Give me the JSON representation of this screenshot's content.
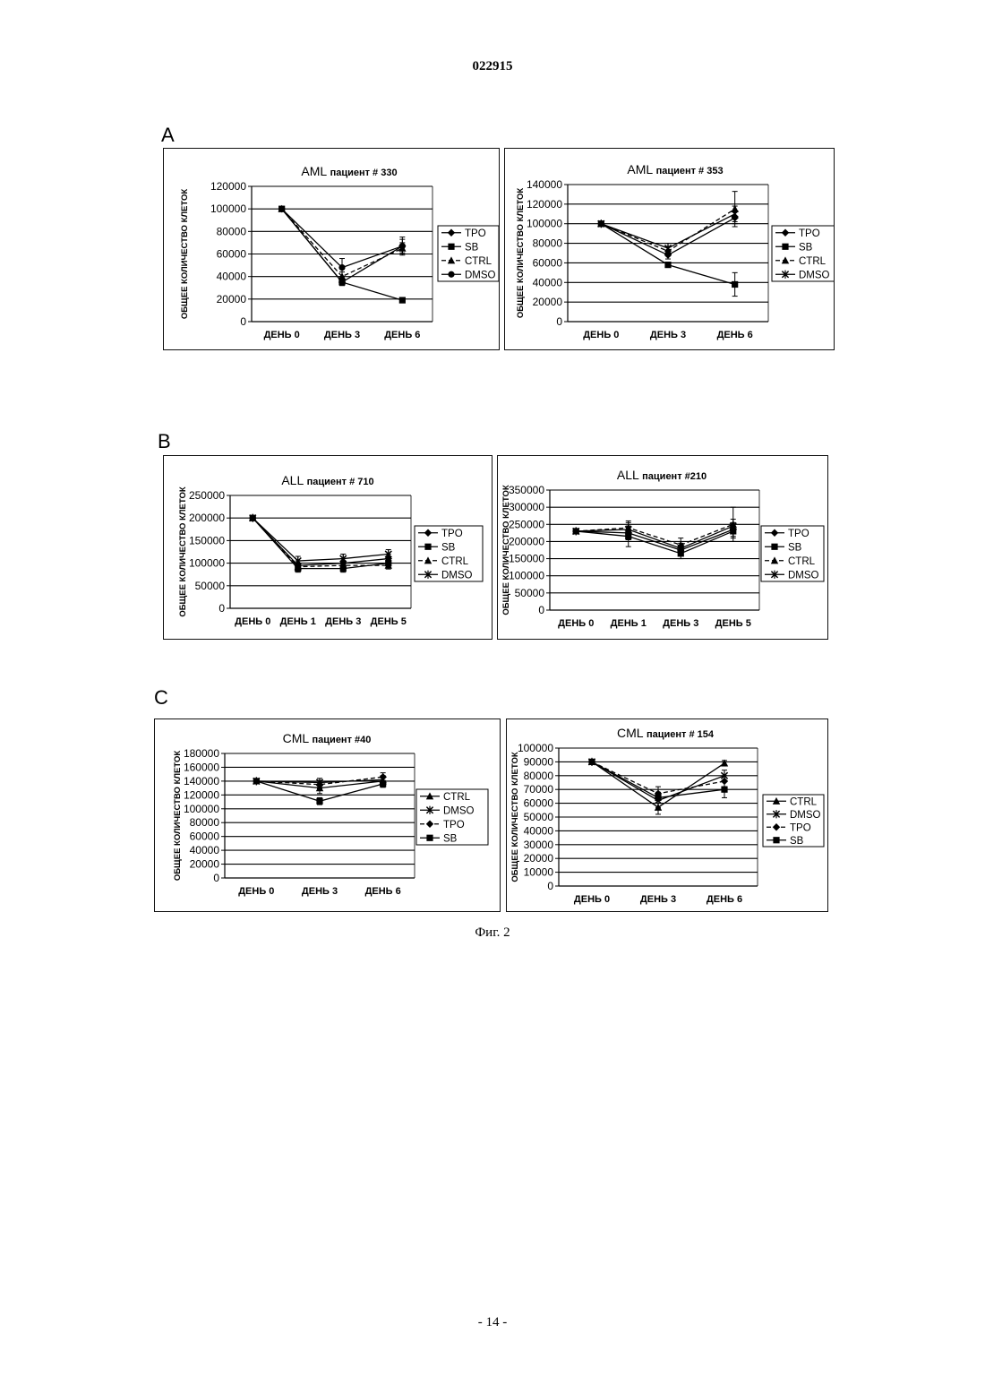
{
  "header": {
    "doc_number": "022915"
  },
  "sections": {
    "a": "A",
    "b": "B",
    "c": "C"
  },
  "caption": "Фиг. 2",
  "footer": {
    "page": "- 14 -"
  },
  "chart_data": [
    {
      "id": "aml330",
      "type": "line",
      "title": "AML пациент # 330",
      "title_main": "AML",
      "title_sub": "пациент # 330",
      "ylabel": "ОБЩЕЕ КОЛИЧЕСТВО КЛЕТОК",
      "categories": [
        "ДЕНЬ 0",
        "ДЕНЬ 3",
        "ДЕНЬ 6"
      ],
      "ylim": [
        0,
        120000
      ],
      "yticks": [
        0,
        20000,
        40000,
        60000,
        80000,
        100000,
        120000
      ],
      "ytick_labels": [
        "0",
        "20000",
        "40000",
        "60000",
        "80000",
        "100000",
        "120000"
      ],
      "grid": true,
      "legend_position": "right",
      "series": [
        {
          "name": "TPO",
          "marker": "diamond",
          "values": [
            100000,
            35000,
            67000
          ],
          "errors": [
            0,
            3000,
            6000
          ]
        },
        {
          "name": "SB",
          "marker": "square",
          "values": [
            100000,
            35000,
            19000
          ],
          "errors": [
            0,
            2000,
            1000
          ]
        },
        {
          "name": "CTRL",
          "marker": "triangle",
          "values": [
            100000,
            40000,
            65000
          ],
          "errors": [
            0,
            4000,
            5000
          ]
        },
        {
          "name": "DMSO",
          "marker": "circle",
          "values": [
            100000,
            48000,
            67000
          ],
          "errors": [
            0,
            8000,
            8000
          ]
        }
      ]
    },
    {
      "id": "aml353",
      "type": "line",
      "title": "AML пациент # 353",
      "title_main": "AML",
      "title_sub": "пациент # 353",
      "ylabel": "ОБЩЕЕ КОЛИЧЕСТВО КЛЕТОК",
      "categories": [
        "ДЕНЬ 0",
        "ДЕНЬ 3",
        "ДЕНЬ 6"
      ],
      "ylim": [
        0,
        140000
      ],
      "yticks": [
        0,
        20000,
        40000,
        60000,
        80000,
        100000,
        120000,
        140000
      ],
      "ytick_labels": [
        "0",
        "20000",
        "40000",
        "60000",
        "80000",
        "100000",
        "120000",
        "140000"
      ],
      "grid": true,
      "legend_position": "right",
      "series": [
        {
          "name": "TPO",
          "marker": "diamond",
          "values": [
            100000,
            68000,
            106000
          ],
          "errors": [
            0,
            4000,
            6000
          ]
        },
        {
          "name": "SB",
          "marker": "square",
          "values": [
            100000,
            58000,
            38000
          ],
          "errors": [
            0,
            2000,
            12000
          ]
        },
        {
          "name": "CTRL",
          "marker": "triangle",
          "values": [
            100000,
            72000,
            115000
          ],
          "errors": [
            0,
            5000,
            18000
          ]
        },
        {
          "name": "DMSO",
          "marker": "x",
          "values": [
            100000,
            75000,
            110000
          ],
          "errors": [
            0,
            5000,
            8000
          ]
        }
      ]
    },
    {
      "id": "all710",
      "type": "line",
      "title": "ALL пациент # 710",
      "title_main": "ALL",
      "title_sub": "пациент # 710",
      "ylabel": "ОБЩЕЕ КОЛИЧЕСТВО КЛЕТОК",
      "categories": [
        "ДЕНЬ 0",
        "ДЕНЬ 1",
        "ДЕНЬ 3",
        "ДЕНЬ 5"
      ],
      "ylim": [
        0,
        250000
      ],
      "yticks": [
        0,
        50000,
        100000,
        150000,
        200000,
        250000
      ],
      "ytick_labels": [
        "0",
        "50000",
        "100000",
        "150000",
        "200000",
        "250000"
      ],
      "grid": true,
      "legend_position": "right",
      "series": [
        {
          "name": "TPO",
          "marker": "diamond",
          "values": [
            200000,
            95000,
            100000,
            110000
          ],
          "errors": [
            0,
            10000,
            10000,
            10000
          ]
        },
        {
          "name": "SB",
          "marker": "square",
          "values": [
            200000,
            88000,
            88000,
            100000
          ],
          "errors": [
            0,
            8000,
            8000,
            10000
          ]
        },
        {
          "name": "CTRL",
          "marker": "triangle",
          "values": [
            200000,
            92000,
            95000,
            95000
          ],
          "errors": [
            0,
            8000,
            8000,
            8000
          ]
        },
        {
          "name": "DMSO",
          "marker": "x",
          "values": [
            200000,
            105000,
            110000,
            120000
          ],
          "errors": [
            0,
            10000,
            10000,
            10000
          ]
        }
      ]
    },
    {
      "id": "all210",
      "type": "line",
      "title": "ALL пациент #210",
      "title_main": "ALL",
      "title_sub": "пациент #210",
      "ylabel": "ОБЩЕЕ КОЛИЧЕСТВО КЛЕТОК",
      "categories": [
        "ДЕНЬ 0",
        "ДЕНЬ 1",
        "ДЕНЬ 3",
        "ДЕНЬ 5"
      ],
      "ylim": [
        0,
        350000
      ],
      "yticks": [
        0,
        50000,
        100000,
        150000,
        200000,
        250000,
        300000,
        350000
      ],
      "ytick_labels": [
        "0",
        "50000",
        "100000",
        "150000",
        "200000",
        "250000",
        "300000",
        "350000"
      ],
      "grid": true,
      "legend_position": "right",
      "series": [
        {
          "name": "TPO",
          "marker": "diamond",
          "values": [
            230000,
            225000,
            175000,
            235000
          ],
          "errors": [
            0,
            20000,
            15000,
            20000
          ]
        },
        {
          "name": "SB",
          "marker": "square",
          "values": [
            230000,
            215000,
            165000,
            230000
          ],
          "errors": [
            0,
            30000,
            15000,
            20000
          ]
        },
        {
          "name": "CTRL",
          "marker": "triangle",
          "values": [
            230000,
            240000,
            190000,
            250000
          ],
          "errors": [
            0,
            20000,
            20000,
            50000
          ]
        },
        {
          "name": "DMSO",
          "marker": "x",
          "values": [
            230000,
            235000,
            180000,
            245000
          ],
          "errors": [
            0,
            20000,
            15000,
            20000
          ]
        }
      ]
    },
    {
      "id": "cml40",
      "type": "line",
      "title": "CML пациент #40",
      "title_main": "CML",
      "title_sub": "пациент #40",
      "ylabel": "ОБЩЕЕ КОЛИЧЕСТВО КЛЕТОК",
      "categories": [
        "ДЕНЬ 0",
        "ДЕНЬ 3",
        "ДЕНЬ 6"
      ],
      "ylim": [
        0,
        180000
      ],
      "yticks": [
        0,
        20000,
        40000,
        60000,
        80000,
        100000,
        120000,
        140000,
        160000,
        180000
      ],
      "ytick_labels": [
        "0",
        "20000",
        "40000",
        "60000",
        "80000",
        "100000",
        "120000",
        "140000",
        "160000",
        "180000"
      ],
      "grid": true,
      "legend_position": "right",
      "series": [
        {
          "name": "CTRL",
          "marker": "triangle",
          "values": [
            140000,
            130000,
            140000
          ],
          "errors": [
            0,
            8000,
            6000
          ]
        },
        {
          "name": "DMSO",
          "marker": "x",
          "values": [
            140000,
            138000,
            142000
          ],
          "errors": [
            0,
            6000,
            6000
          ]
        },
        {
          "name": "TPO",
          "marker": "diamond",
          "values": [
            140000,
            135000,
            146000
          ],
          "errors": [
            0,
            6000,
            6000
          ]
        },
        {
          "name": "SB",
          "marker": "square",
          "values": [
            140000,
            111000,
            136000
          ],
          "errors": [
            0,
            5000,
            5000
          ]
        }
      ]
    },
    {
      "id": "cml154",
      "type": "line",
      "title": "CML пациент # 154",
      "title_main": "CML",
      "title_sub": "пациент # 154",
      "ylabel": "ОБЩЕЕ КОЛИЧЕСТВО КЛЕТОК",
      "categories": [
        "ДЕНЬ 0",
        "ДЕНЬ 3",
        "ДЕНЬ 6"
      ],
      "ylim": [
        0,
        100000
      ],
      "yticks": [
        0,
        10000,
        20000,
        30000,
        40000,
        50000,
        60000,
        70000,
        80000,
        90000,
        100000
      ],
      "ytick_labels": [
        "0",
        "10000",
        "20000",
        "30000",
        "40000",
        "50000",
        "60000",
        "70000",
        "80000",
        "90000",
        "100000"
      ],
      "grid": true,
      "legend_position": "right",
      "series": [
        {
          "name": "CTRL",
          "marker": "triangle",
          "values": [
            90000,
            57000,
            89000
          ],
          "errors": [
            0,
            5000,
            2000
          ]
        },
        {
          "name": "DMSO",
          "marker": "x",
          "values": [
            90000,
            62000,
            80000
          ],
          "errors": [
            0,
            5000,
            4000
          ]
        },
        {
          "name": "TPO",
          "marker": "diamond",
          "values": [
            90000,
            67000,
            76000
          ],
          "errors": [
            0,
            5000,
            4000
          ]
        },
        {
          "name": "SB",
          "marker": "square",
          "values": [
            90000,
            64000,
            70000
          ],
          "errors": [
            0,
            4000,
            6000
          ]
        }
      ]
    }
  ]
}
